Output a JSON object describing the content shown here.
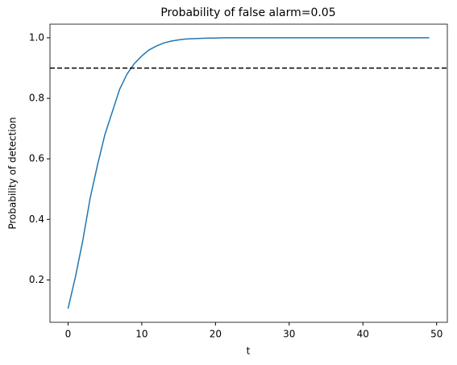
{
  "chart_data": {
    "type": "line",
    "title": "Probability of false alarm=0.05",
    "x_label": "t",
    "y_label": "Probability of detection",
    "x": [
      0,
      1,
      2,
      3,
      4,
      5,
      6,
      7,
      8,
      9,
      10,
      11,
      12,
      13,
      14,
      15,
      16,
      17,
      18,
      19,
      20,
      21,
      22,
      23,
      24,
      25,
      26,
      27,
      28,
      29,
      30,
      31,
      32,
      33,
      34,
      35,
      36,
      37,
      38,
      39,
      40,
      41,
      42,
      43,
      44,
      45,
      46,
      47,
      48,
      49
    ],
    "series": [
      {
        "color": "#1f77b4",
        "values": [
          0.105,
          0.21,
          0.33,
          0.47,
          0.58,
          0.68,
          0.755,
          0.83,
          0.88,
          0.915,
          0.94,
          0.96,
          0.973,
          0.983,
          0.989,
          0.993,
          0.996,
          0.997,
          0.998,
          0.999,
          0.999,
          1,
          1,
          1,
          1,
          1,
          1,
          1,
          1,
          1,
          1,
          1,
          1,
          1,
          1,
          1,
          1,
          1,
          1,
          1,
          1,
          1,
          1,
          1,
          1,
          1,
          1,
          1,
          1,
          1
        ]
      }
    ],
    "hline": 0.9,
    "hline_color": "#000000",
    "xlim": [
      -2.45,
      51.45
    ],
    "xticks": [
      0,
      10,
      20,
      30,
      40,
      50
    ],
    "ylim": [
      0.06,
      1.045
    ],
    "yticks": [
      0.2,
      0.4,
      0.6,
      0.8,
      {
        "value": 1,
        "label": "1.0"
      }
    ],
    "grid": false
  }
}
